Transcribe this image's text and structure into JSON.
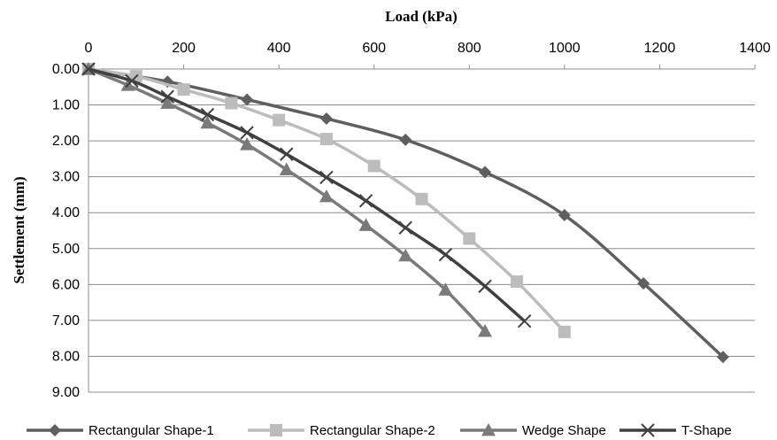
{
  "chart_data": {
    "type": "line",
    "xlabel": "Load (kPa)",
    "ylabel": "Settlement (mm)",
    "x_axis_position": "top",
    "y_axis_inverted": true,
    "xlim": [
      0,
      1400
    ],
    "ylim": [
      0,
      9
    ],
    "x_ticks": [
      "0",
      "200",
      "400",
      "600",
      "800",
      "1000",
      "1200",
      "1400"
    ],
    "y_ticks": [
      "0.00",
      "1.00",
      "2.00",
      "3.00",
      "4.00",
      "5.00",
      "6.00",
      "7.00",
      "8.00",
      "9.00"
    ],
    "grid": "horizontal",
    "legend_position": "bottom",
    "series": [
      {
        "name": "Rectangular Shape-1",
        "color": "#5f5f5f",
        "marker": "diamond",
        "x": [
          0,
          166,
          333,
          500,
          666,
          833,
          1000,
          1166,
          1333
        ],
        "y": [
          0,
          0.35,
          0.85,
          1.38,
          1.97,
          2.87,
          4.07,
          5.97,
          8.02
        ]
      },
      {
        "name": "Rectangular Shape-2",
        "color": "#bcbcbc",
        "marker": "square",
        "x": [
          0,
          100,
          200,
          300,
          400,
          500,
          600,
          700,
          800,
          900,
          1000
        ],
        "y": [
          0,
          0.2,
          0.57,
          0.95,
          1.42,
          1.95,
          2.7,
          3.62,
          4.72,
          5.92,
          7.32
        ]
      },
      {
        "name": "Wedge Shape",
        "color": "#7a7a7a",
        "marker": "triangle",
        "x": [
          0,
          83,
          166,
          250,
          333,
          416,
          500,
          583,
          666,
          750,
          833
        ],
        "y": [
          0,
          0.45,
          0.95,
          1.5,
          2.1,
          2.8,
          3.55,
          4.35,
          5.2,
          6.15,
          7.3
        ]
      },
      {
        "name": "T-Shape",
        "color": "#404040",
        "marker": "x",
        "x": [
          0,
          91,
          166,
          250,
          333,
          416,
          500,
          583,
          666,
          750,
          833,
          916
        ],
        "y": [
          0,
          0.33,
          0.77,
          1.27,
          1.77,
          2.37,
          3.02,
          3.67,
          4.42,
          5.17,
          6.05,
          7.02
        ]
      }
    ]
  }
}
